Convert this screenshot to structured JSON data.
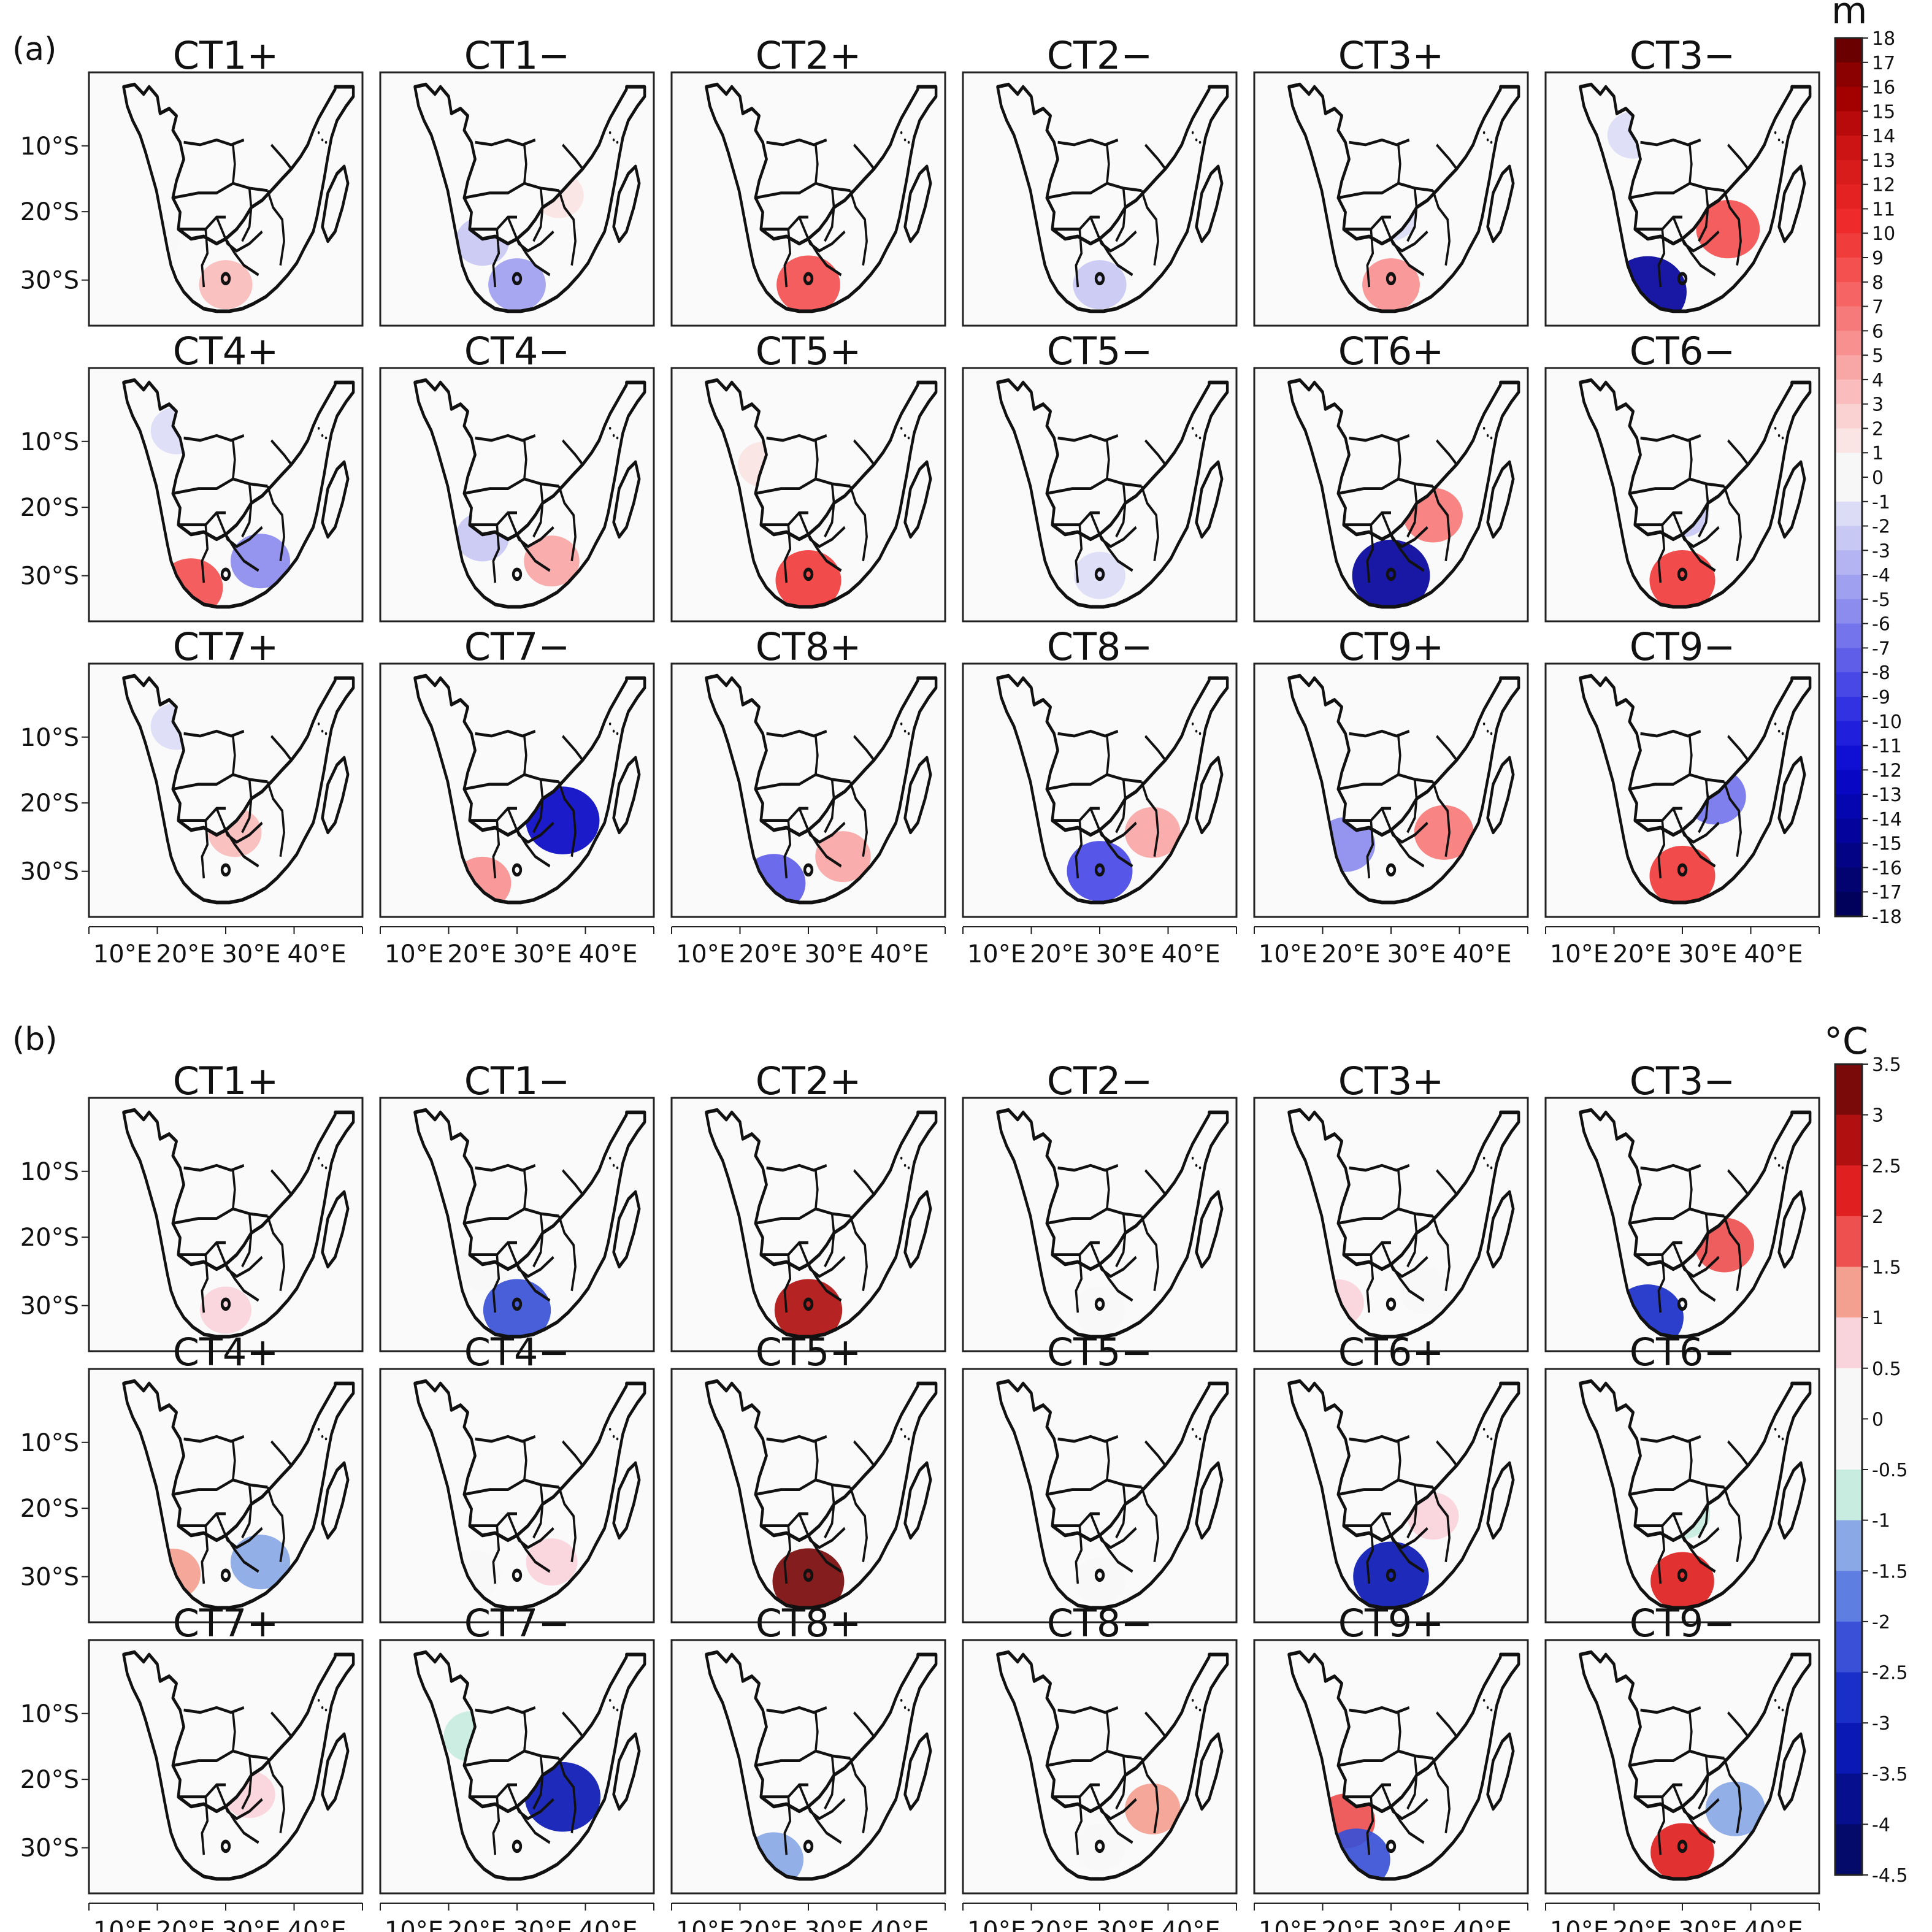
{
  "figure": {
    "panels": [
      {
        "label": "(a)",
        "unit": "m"
      },
      {
        "label": "(b)",
        "unit": "°C"
      }
    ],
    "lat_ticks": [
      "10°S",
      "20°S",
      "30°S"
    ],
    "lon_ticks": [
      "10°E",
      "20°E",
      "30°E",
      "40°E"
    ],
    "subplot_titles": [
      "CT1+",
      "CT1−",
      "CT2+",
      "CT2−",
      "CT3+",
      "CT3−",
      "CT4+",
      "CT4−",
      "CT5+",
      "CT5−",
      "CT6+",
      "CT6−",
      "CT7+",
      "CT7−",
      "CT8+",
      "CT8−",
      "CT9+",
      "CT9−"
    ]
  },
  "chart_data": [
    {
      "type": "heatmap",
      "panel": "(a)",
      "variable_unit": "m",
      "colorbar": {
        "ticks": [
          "18",
          "17",
          "16",
          "15",
          "14",
          "13",
          "12",
          "11",
          "10",
          "9",
          "8",
          "7",
          "6",
          "5",
          "4",
          "3",
          "2",
          "1",
          "0",
          "-1",
          "-2",
          "-3",
          "-4",
          "-5",
          "-6",
          "-7",
          "-8",
          "-9",
          "-10",
          "-11",
          "-12",
          "-13",
          "-14",
          "-15",
          "-16",
          "-17",
          "-18"
        ],
        "range": [
          -18,
          18
        ]
      },
      "maps": [
        {
          "title": "CT1+",
          "anomalies": [
            {
              "region": "Southern South Africa",
              "value": 3
            },
            {
              "region": "Namibia coast",
              "value": -1
            }
          ]
        },
        {
          "title": "CT1−",
          "anomalies": [
            {
              "region": "Namibia/Botswana",
              "value": -3
            },
            {
              "region": "Southern South Africa",
              "value": -5
            },
            {
              "region": "Zambia/Malawi",
              "value": 1
            }
          ]
        },
        {
          "title": "CT2+",
          "anomalies": [
            {
              "region": "Angola/Zambia belt",
              "value": -2
            },
            {
              "region": "Southern South Africa",
              "value": 8
            }
          ]
        },
        {
          "title": "CT2−",
          "anomalies": [
            {
              "region": "Southern South Africa",
              "value": -3
            }
          ]
        },
        {
          "title": "CT3+",
          "anomalies": [
            {
              "region": "Central southern Africa",
              "value": -2
            },
            {
              "region": "Southern South Africa",
              "value": 5
            }
          ]
        },
        {
          "title": "CT3−",
          "anomalies": [
            {
              "region": "Angola/DRC",
              "value": -2
            },
            {
              "region": "Mozambique/Zimbabwe",
              "value": 8
            },
            {
              "region": "Southwest South Africa",
              "value": -15
            }
          ]
        },
        {
          "title": "CT4+",
          "anomalies": [
            {
              "region": "Angola/DRC",
              "value": -2
            },
            {
              "region": "Southwest South Africa",
              "value": 8
            },
            {
              "region": "Eastern South Africa",
              "value": -6
            }
          ]
        },
        {
          "title": "CT4−",
          "anomalies": [
            {
              "region": "Namibia/Botswana",
              "value": -3
            },
            {
              "region": "Eastern South Africa",
              "value": 4
            }
          ]
        },
        {
          "title": "CT5+",
          "anomalies": [
            {
              "region": "Southern South Africa",
              "value": 9
            },
            {
              "region": "Angola",
              "value": 1
            }
          ]
        },
        {
          "title": "CT5−",
          "anomalies": [
            {
              "region": "South Africa",
              "value": -2
            }
          ]
        },
        {
          "title": "CT6+",
          "anomalies": [
            {
              "region": "Zimbabwe/Mozambique",
              "value": 6
            },
            {
              "region": "South Africa",
              "value": -15
            }
          ]
        },
        {
          "title": "CT6−",
          "anomalies": [
            {
              "region": "Central southern Africa",
              "value": -3
            },
            {
              "region": "Southern South Africa",
              "value": 9
            }
          ]
        },
        {
          "title": "CT7+",
          "anomalies": [
            {
              "region": "Angola/DRC",
              "value": -2
            },
            {
              "region": "Botswana/Zimbabwe",
              "value": 3
            }
          ]
        },
        {
          "title": "CT7−",
          "anomalies": [
            {
              "region": "Mozambique/Zimbabwe",
              "value": -13
            },
            {
              "region": "Southwest South Africa",
              "value": 5
            }
          ]
        },
        {
          "title": "CT8+",
          "anomalies": [
            {
              "region": "Southwest South Africa",
              "value": -8
            },
            {
              "region": "Eastern South Africa",
              "value": 4
            }
          ]
        },
        {
          "title": "CT8−",
          "anomalies": [
            {
              "region": "Mozambique",
              "value": 4
            },
            {
              "region": "South Africa",
              "value": -9
            }
          ]
        },
        {
          "title": "CT9+",
          "anomalies": [
            {
              "region": "DRC/Tanzania",
              "value": -4
            },
            {
              "region": "Namibia",
              "value": -6
            },
            {
              "region": "Mozambique",
              "value": 6
            }
          ]
        },
        {
          "title": "CT9−",
          "anomalies": [
            {
              "region": "Zambia/Mozambique",
              "value": -7
            },
            {
              "region": "Southern South Africa",
              "value": 9
            }
          ]
        }
      ]
    },
    {
      "type": "heatmap",
      "panel": "(b)",
      "variable_unit": "°C",
      "colorbar": {
        "ticks": [
          "3.5",
          "3",
          "2.5",
          "2",
          "1.5",
          "1",
          "0.5",
          "0",
          "-0.5",
          "-1",
          "-1.5",
          "-2",
          "-2.5",
          "-3",
          "-3.5",
          "-4",
          "-4.5"
        ],
        "range": [
          -4.5,
          3.5
        ]
      },
      "maps": [
        {
          "title": "CT1+",
          "anomalies": [
            {
              "region": "Southern South Africa",
              "value": 0.5
            }
          ]
        },
        {
          "title": "CT1−",
          "anomalies": [
            {
              "region": "Namibia/Botswana",
              "value": -0.5
            },
            {
              "region": "Southern South Africa",
              "value": -2.5
            }
          ]
        },
        {
          "title": "CT2+",
          "anomalies": [
            {
              "region": "Southern South Africa",
              "value": 2.5
            }
          ]
        },
        {
          "title": "CT2−",
          "anomalies": [
            {
              "region": "Southern South Africa",
              "value": -0.5
            }
          ]
        },
        {
          "title": "CT3+",
          "anomalies": [
            {
              "region": "Eastern South Africa",
              "value": -0.5
            },
            {
              "region": "Southwest coast",
              "value": 0.5
            }
          ]
        },
        {
          "title": "CT3−",
          "anomalies": [
            {
              "region": "Zimbabwe/Mozambique",
              "value": 1.5
            },
            {
              "region": "Southwest South Africa",
              "value": -3
            }
          ]
        },
        {
          "title": "CT4+",
          "anomalies": [
            {
              "region": "Eastern South Africa",
              "value": -1.5
            },
            {
              "region": "Southwest coast",
              "value": 1
            }
          ]
        },
        {
          "title": "CT4−",
          "anomalies": [
            {
              "region": "Western South Africa",
              "value": -0.5
            },
            {
              "region": "Eastern South Africa",
              "value": 0.5
            }
          ]
        },
        {
          "title": "CT5+",
          "anomalies": [
            {
              "region": "Southern South Africa",
              "value": 3
            }
          ]
        },
        {
          "title": "CT5−",
          "anomalies": [
            {
              "region": "Southern South Africa",
              "value": -0.5
            }
          ]
        },
        {
          "title": "CT6+",
          "anomalies": [
            {
              "region": "South Africa",
              "value": -3.5
            },
            {
              "region": "Zimbabwe/Mozambique",
              "value": 0.5
            }
          ]
        },
        {
          "title": "CT6−",
          "anomalies": [
            {
              "region": "Central southern Africa",
              "value": -1
            },
            {
              "region": "Southern South Africa",
              "value": 2
            }
          ]
        },
        {
          "title": "CT7+",
          "anomalies": [
            {
              "region": "Zimbabwe",
              "value": 0.5
            }
          ]
        },
        {
          "title": "CT7−",
          "anomalies": [
            {
              "region": "Mozambique/Zimbabwe",
              "value": -3.5
            },
            {
              "region": "Angola",
              "value": -1
            }
          ]
        },
        {
          "title": "CT8+",
          "anomalies": [
            {
              "region": "Southwest South Africa",
              "value": -1.5
            }
          ]
        },
        {
          "title": "CT8−",
          "anomalies": [
            {
              "region": "Mozambique",
              "value": 1
            },
            {
              "region": "South Africa",
              "value": -0.5
            }
          ]
        },
        {
          "title": "CT9+",
          "anomalies": [
            {
              "region": "Tanzania",
              "value": -1.5
            },
            {
              "region": "Namibia",
              "value": 1.5
            },
            {
              "region": "Southwest South Africa",
              "value": -2.5
            }
          ]
        },
        {
          "title": "CT9−",
          "anomalies": [
            {
              "region": "Mozambique",
              "value": -1.5
            },
            {
              "region": "Southern South Africa",
              "value": 2
            }
          ]
        }
      ]
    }
  ],
  "colors": {
    "m_scale": [
      "#6b0000",
      "#8b0000",
      "#a30000",
      "#b80a0a",
      "#cc1414",
      "#d81c1c",
      "#e42222",
      "#ee2a2a",
      "#f13c3c",
      "#f45050",
      "#f66464",
      "#f77a7a",
      "#f89090",
      "#f9a6a6",
      "#fabcbc",
      "#fbd2d2",
      "#fbe4e4",
      "#f7f7f7",
      "#f7f7f7",
      "#dcdcf7",
      "#c8c8f4",
      "#b4b4f2",
      "#a0a0f0",
      "#8c8cee",
      "#7474ec",
      "#5e5ee9",
      "#4848e6",
      "#3232e2",
      "#2020dc",
      "#1010d4",
      "#0808c4",
      "#0606b0",
      "#04049c",
      "#030386",
      "#020270",
      "#01015c"
    ],
    "c_scale": [
      "#7a0a0a",
      "#b01010",
      "#e02020",
      "#ee5050",
      "#f4a090",
      "#fad4dc",
      "#f7f7f7",
      "#f7f7f7",
      "#c8ecdf",
      "#8aa8e6",
      "#5e7ee2",
      "#3a50d6",
      "#1a2ec8",
      "#0a18b4",
      "#06108e",
      "#040a6a"
    ]
  }
}
